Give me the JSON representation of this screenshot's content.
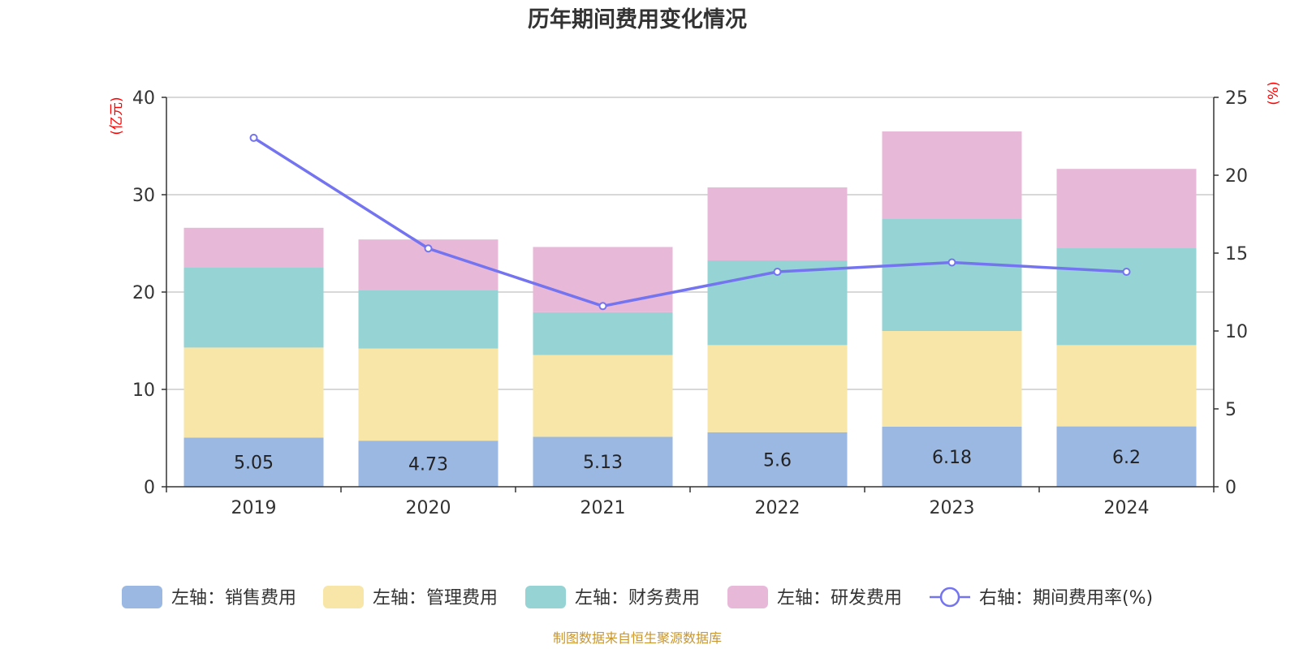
{
  "chart_data": {
    "type": "bar",
    "stacked": true,
    "title": "历年期间费用变化情况",
    "categories": [
      "2019",
      "2020",
      "2021",
      "2022",
      "2023",
      "2024"
    ],
    "left_axis": {
      "unit": "(亿元)",
      "ylim": [
        0,
        40
      ],
      "ticks": [
        0,
        10,
        20,
        30,
        40
      ]
    },
    "right_axis": {
      "unit": "(%)",
      "ylim": [
        0,
        25
      ],
      "ticks": [
        0,
        5,
        10,
        15,
        20,
        25
      ]
    },
    "grid": true,
    "legend_position": "bottom",
    "series": [
      {
        "name": "左轴：销售费用",
        "type": "bar",
        "axis": "left",
        "color": "#9bb8e3",
        "values": [
          5.05,
          4.73,
          5.13,
          5.6,
          6.18,
          6.2
        ],
        "show_labels": true
      },
      {
        "name": "左轴：管理费用",
        "type": "bar",
        "axis": "left",
        "color": "#f7e6a8",
        "values": [
          9.25,
          9.47,
          8.4,
          8.95,
          9.82,
          8.35
        ]
      },
      {
        "name": "左轴：财务费用",
        "type": "bar",
        "axis": "left",
        "color": "#96d3d4",
        "values": [
          8.2,
          6.0,
          4.4,
          8.7,
          11.5,
          10.0
        ]
      },
      {
        "name": "左轴：研发费用",
        "type": "bar",
        "axis": "left",
        "color": "#e8b8d9",
        "values": [
          4.1,
          5.2,
          6.7,
          7.5,
          9.0,
          8.1
        ]
      },
      {
        "name": "右轴：期间费用率(%)",
        "type": "line",
        "axis": "right",
        "color": "#7474f0",
        "values": [
          22.4,
          15.3,
          11.6,
          13.8,
          14.4,
          13.8
        ]
      }
    ],
    "source": "制图数据来自恒生聚源数据库"
  }
}
